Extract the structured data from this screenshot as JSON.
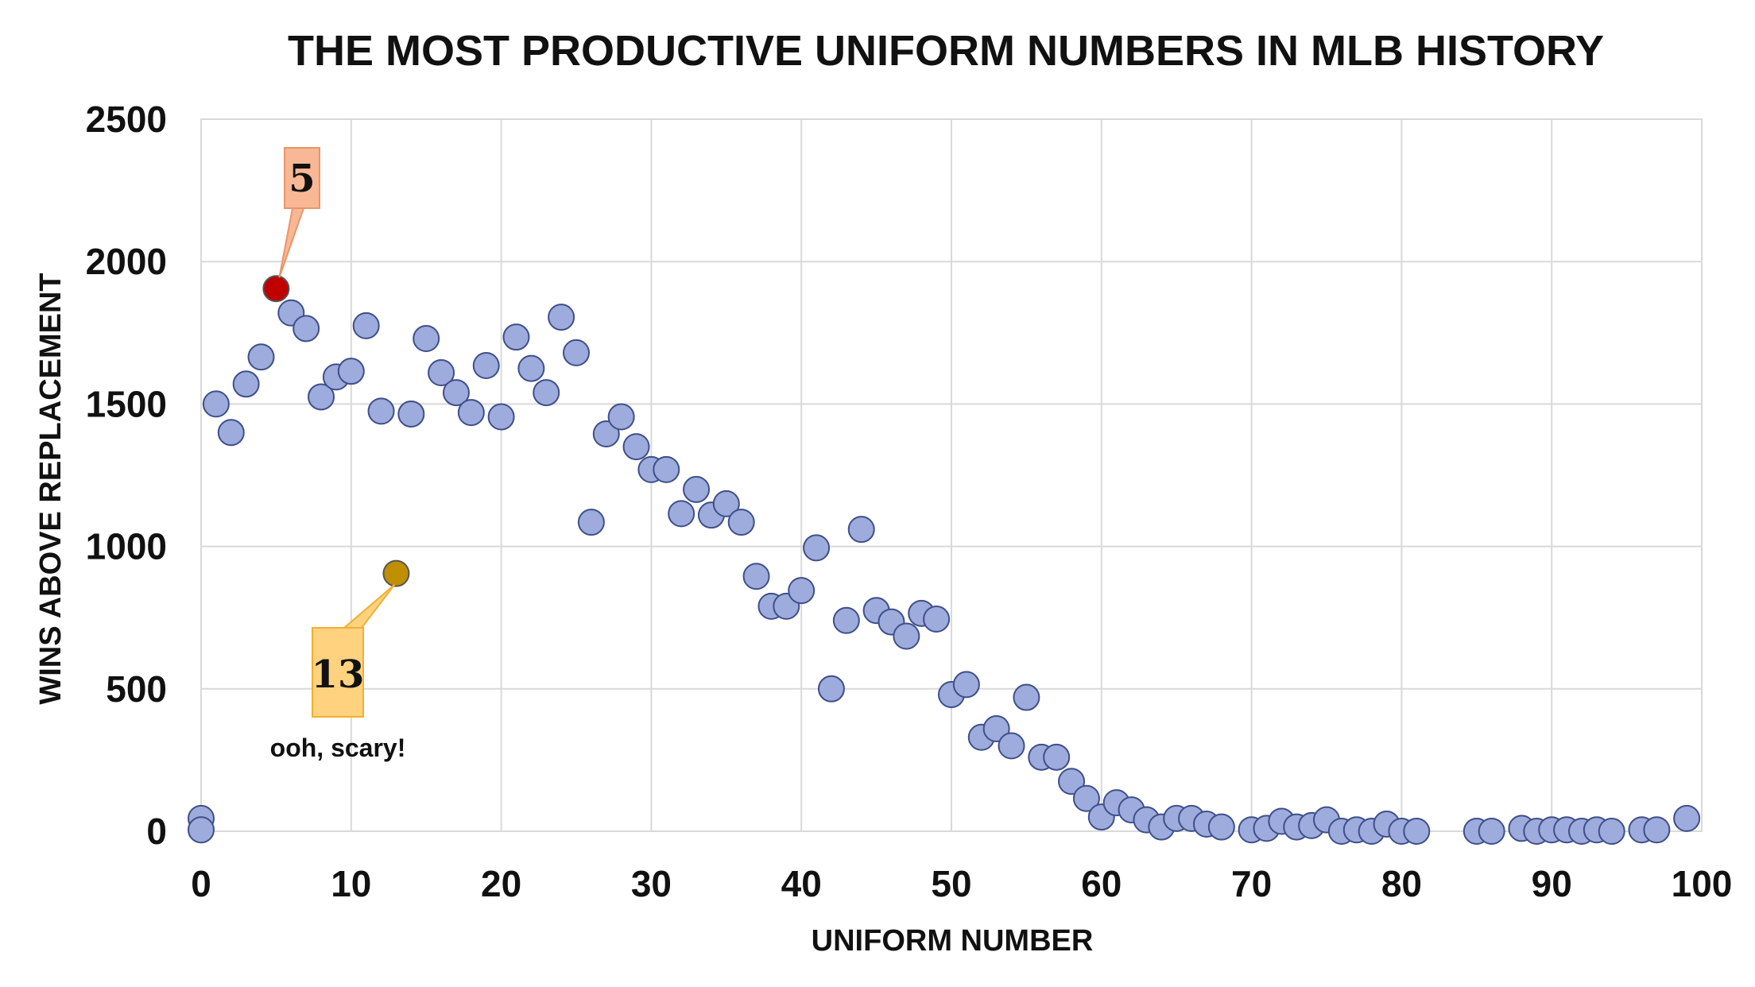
{
  "chart_data": {
    "type": "scatter",
    "title": "THE MOST PRODUCTIVE UNIFORM NUMBERS IN MLB HISTORY",
    "xlabel": "UNIFORM NUMBER",
    "ylabel": "WINS ABOVE REPLACEMENT",
    "xlim": [
      0,
      100
    ],
    "ylim": [
      0,
      2500
    ],
    "xticks": [
      "0",
      "10",
      "20",
      "30",
      "40",
      "50",
      "60",
      "70",
      "80",
      "90",
      "100"
    ],
    "yticks": [
      "0",
      "500",
      "1000",
      "1500",
      "2000",
      "2500"
    ],
    "grid": true,
    "colors": {
      "point": "#9dacdd",
      "point_edge": "#3f4f88",
      "highlight_5": "#c00000",
      "highlight_13": "#bf8f00",
      "label_5_bg": "#f8b895",
      "label_13_bg": "#ffd27f"
    },
    "points": [
      {
        "x": 0,
        "y": 45
      },
      {
        "x": 0,
        "y": 5
      },
      {
        "x": 1,
        "y": 1500
      },
      {
        "x": 2,
        "y": 1400
      },
      {
        "x": 3,
        "y": 1570
      },
      {
        "x": 4,
        "y": 1665
      },
      {
        "x": 5,
        "y": 1905
      },
      {
        "x": 6,
        "y": 1820
      },
      {
        "x": 7,
        "y": 1765
      },
      {
        "x": 8,
        "y": 1525
      },
      {
        "x": 9,
        "y": 1595
      },
      {
        "x": 10,
        "y": 1615
      },
      {
        "x": 11,
        "y": 1775
      },
      {
        "x": 12,
        "y": 1475
      },
      {
        "x": 13,
        "y": 905
      },
      {
        "x": 14,
        "y": 1465
      },
      {
        "x": 15,
        "y": 1730
      },
      {
        "x": 16,
        "y": 1610
      },
      {
        "x": 17,
        "y": 1540
      },
      {
        "x": 18,
        "y": 1470
      },
      {
        "x": 19,
        "y": 1635
      },
      {
        "x": 20,
        "y": 1455
      },
      {
        "x": 21,
        "y": 1735
      },
      {
        "x": 22,
        "y": 1625
      },
      {
        "x": 23,
        "y": 1540
      },
      {
        "x": 24,
        "y": 1805
      },
      {
        "x": 25,
        "y": 1680
      },
      {
        "x": 26,
        "y": 1085
      },
      {
        "x": 27,
        "y": 1395
      },
      {
        "x": 28,
        "y": 1455
      },
      {
        "x": 29,
        "y": 1350
      },
      {
        "x": 30,
        "y": 1270
      },
      {
        "x": 31,
        "y": 1270
      },
      {
        "x": 32,
        "y": 1115
      },
      {
        "x": 33,
        "y": 1200
      },
      {
        "x": 34,
        "y": 1110
      },
      {
        "x": 35,
        "y": 1150
      },
      {
        "x": 36,
        "y": 1085
      },
      {
        "x": 37,
        "y": 895
      },
      {
        "x": 38,
        "y": 790
      },
      {
        "x": 39,
        "y": 790
      },
      {
        "x": 40,
        "y": 845
      },
      {
        "x": 41,
        "y": 995
      },
      {
        "x": 42,
        "y": 500
      },
      {
        "x": 43,
        "y": 740
      },
      {
        "x": 44,
        "y": 1060
      },
      {
        "x": 45,
        "y": 775
      },
      {
        "x": 46,
        "y": 735
      },
      {
        "x": 47,
        "y": 685
      },
      {
        "x": 48,
        "y": 765
      },
      {
        "x": 49,
        "y": 745
      },
      {
        "x": 50,
        "y": 480
      },
      {
        "x": 51,
        "y": 515
      },
      {
        "x": 52,
        "y": 330
      },
      {
        "x": 53,
        "y": 360
      },
      {
        "x": 54,
        "y": 300
      },
      {
        "x": 55,
        "y": 470
      },
      {
        "x": 56,
        "y": 260
      },
      {
        "x": 57,
        "y": 260
      },
      {
        "x": 58,
        "y": 175
      },
      {
        "x": 59,
        "y": 115
      },
      {
        "x": 60,
        "y": 50
      },
      {
        "x": 61,
        "y": 100
      },
      {
        "x": 62,
        "y": 75
      },
      {
        "x": 63,
        "y": 40
      },
      {
        "x": 64,
        "y": 15
      },
      {
        "x": 65,
        "y": 45
      },
      {
        "x": 66,
        "y": 45
      },
      {
        "x": 67,
        "y": 25
      },
      {
        "x": 68,
        "y": 15
      },
      {
        "x": 70,
        "y": 5
      },
      {
        "x": 71,
        "y": 10
      },
      {
        "x": 72,
        "y": 35
      },
      {
        "x": 73,
        "y": 15
      },
      {
        "x": 74,
        "y": 20
      },
      {
        "x": 75,
        "y": 40
      },
      {
        "x": 76,
        "y": 0
      },
      {
        "x": 77,
        "y": 5
      },
      {
        "x": 78,
        "y": 0
      },
      {
        "x": 79,
        "y": 25
      },
      {
        "x": 80,
        "y": 0
      },
      {
        "x": 81,
        "y": 0
      },
      {
        "x": 85,
        "y": 0
      },
      {
        "x": 86,
        "y": 0
      },
      {
        "x": 88,
        "y": 10
      },
      {
        "x": 89,
        "y": 0
      },
      {
        "x": 90,
        "y": 5
      },
      {
        "x": 91,
        "y": 5
      },
      {
        "x": 92,
        "y": 0
      },
      {
        "x": 93,
        "y": 5
      },
      {
        "x": 94,
        "y": 0
      },
      {
        "x": 96,
        "y": 5
      },
      {
        "x": 97,
        "y": 5
      },
      {
        "x": 99,
        "y": 45
      }
    ],
    "highlights": [
      {
        "x": 5,
        "label": "5"
      },
      {
        "x": 13,
        "label": "13",
        "note": "ooh, scary!"
      }
    ]
  }
}
